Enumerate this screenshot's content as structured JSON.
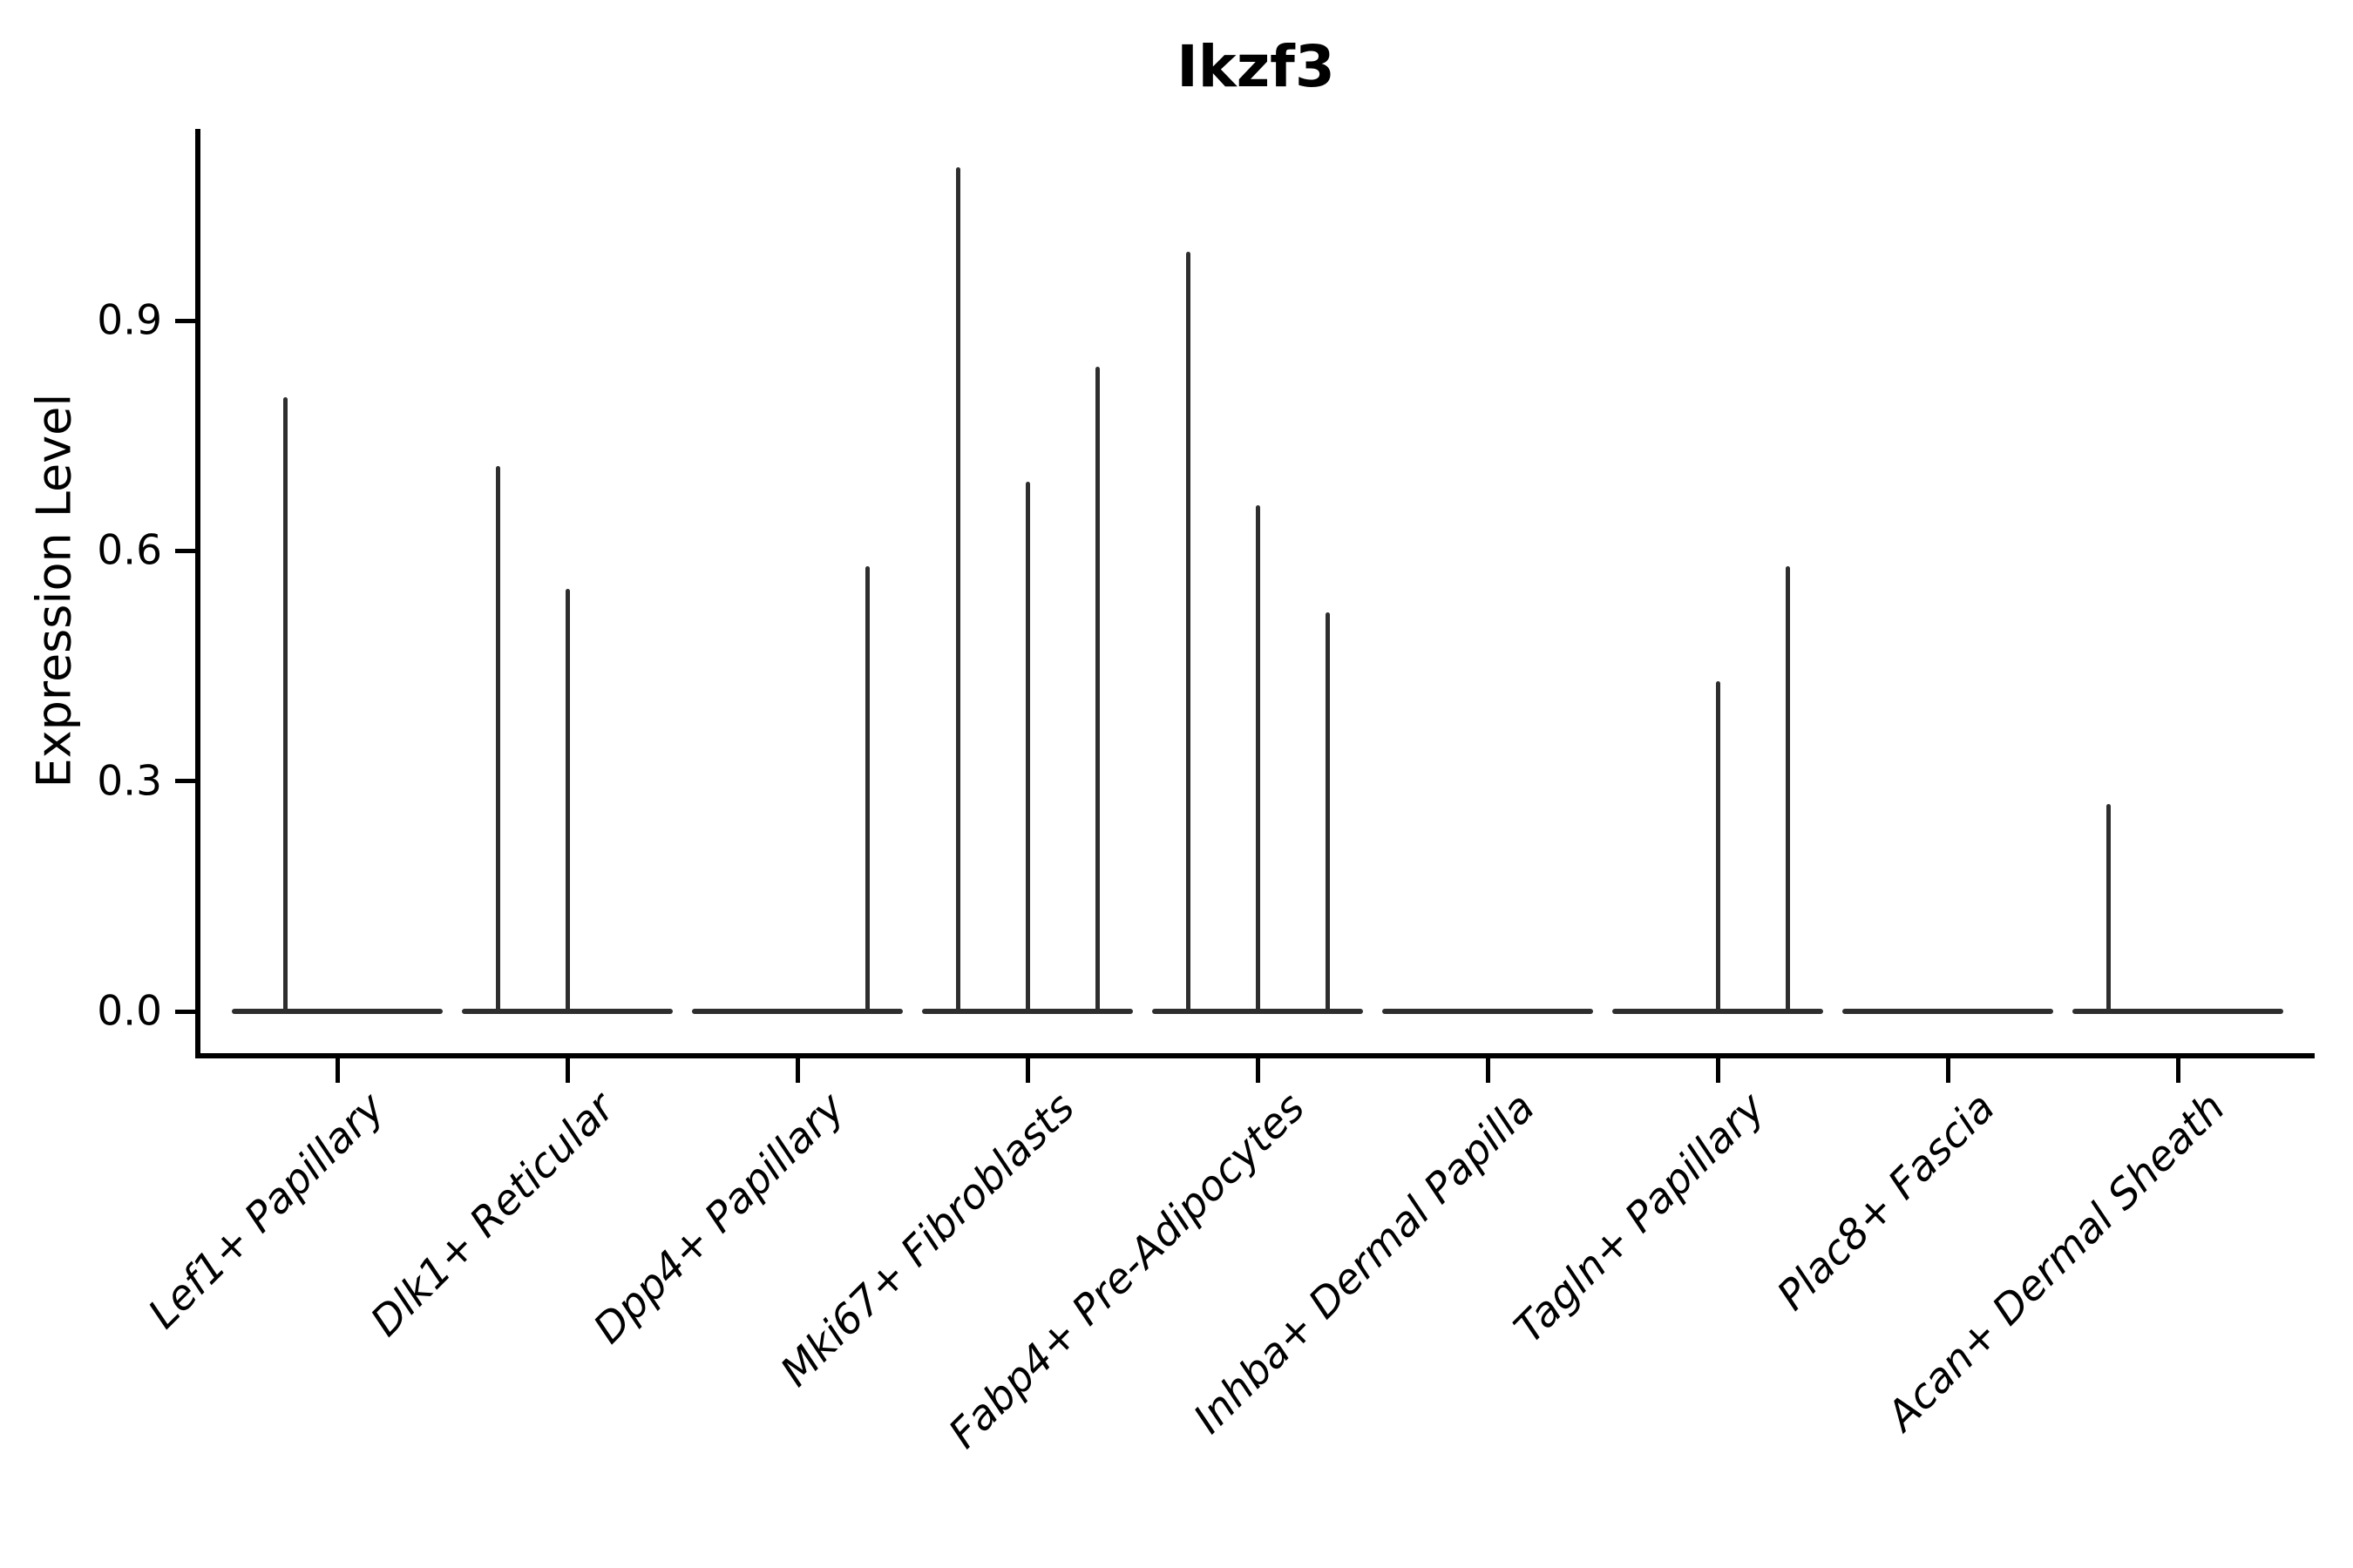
{
  "chart_data": {
    "type": "violin",
    "title": "Ikzf3",
    "ylabel": "Expression Level",
    "xlabel": "",
    "grid": false,
    "legend": null,
    "ytick_labels": [
      "0.0",
      "0.3",
      "0.6",
      "0.9"
    ],
    "ytick_values": [
      0.0,
      0.3,
      0.6,
      0.9
    ],
    "ylim": [
      -0.054,
      1.15
    ],
    "colors": {
      "violin_line": "#2e2e2e",
      "axis": "#000000",
      "text": "#000000",
      "background": "#ffffff"
    },
    "categories": [
      {
        "label": "Lef1+ Papillary",
        "spikes": [
          {
            "dx": -60,
            "value": 0.8
          }
        ]
      },
      {
        "label": "Dlk1+ Reticular",
        "spikes": [
          {
            "dx": -80,
            "value": 0.71
          },
          {
            "dx": 0,
            "value": 0.55
          }
        ]
      },
      {
        "label": "Dpp4+ Papillary",
        "spikes": [
          {
            "dx": 80,
            "value": 0.58
          }
        ]
      },
      {
        "label": "Mki67+ Fibroblasts",
        "spikes": [
          {
            "dx": -80,
            "value": 1.1
          },
          {
            "dx": 0,
            "value": 0.69
          },
          {
            "dx": 80,
            "value": 0.84
          }
        ]
      },
      {
        "label": "Fabp4+ Pre-Adipocytes",
        "spikes": [
          {
            "dx": -80,
            "value": 0.99
          },
          {
            "dx": 0,
            "value": 0.66
          },
          {
            "dx": 80,
            "value": 0.52
          }
        ]
      },
      {
        "label": "Inhba+ Dermal Papilla",
        "spikes": []
      },
      {
        "label": "Tagln+ Papillary",
        "spikes": [
          {
            "dx": 0,
            "value": 0.43
          },
          {
            "dx": 80,
            "value": 0.58
          }
        ]
      },
      {
        "label": "Plac8+ Fascia",
        "spikes": []
      },
      {
        "label": "Acan+ Dermal Sheath",
        "spikes": [
          {
            "dx": -80,
            "value": 0.27
          }
        ]
      }
    ]
  }
}
